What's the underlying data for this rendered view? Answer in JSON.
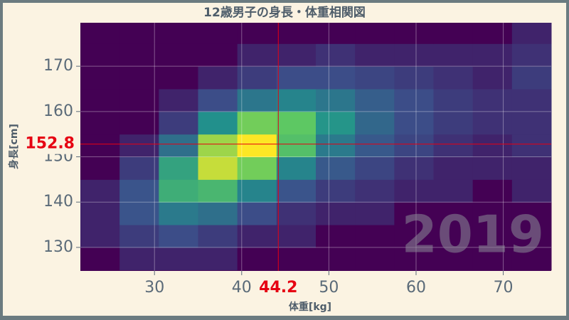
{
  "chart_data": {
    "type": "heatmap",
    "title": "12歳男子の身長・体重相関図",
    "xlabel": "体重[kg]",
    "ylabel": "身長[cm]",
    "x_bins": [
      21.5,
      26,
      30.5,
      35,
      39.5,
      44,
      48.5,
      53,
      57.5,
      62,
      66.5,
      71,
      75.5
    ],
    "y_bins": [
      125,
      130,
      135,
      140,
      145,
      150,
      155,
      160,
      165,
      170,
      175,
      180
    ],
    "counts": [
      [
        0,
        1,
        1,
        1,
        0,
        0,
        0,
        0,
        0,
        0,
        0,
        0
      ],
      [
        1,
        3,
        5,
        3,
        1,
        1,
        0,
        0,
        0,
        0,
        0,
        0
      ],
      [
        1,
        6,
        15,
        12,
        5,
        2,
        1,
        1,
        0,
        0,
        0,
        0
      ],
      [
        1,
        6,
        35,
        40,
        18,
        6,
        3,
        2,
        1,
        1,
        0,
        1
      ],
      [
        0,
        3,
        30,
        75,
        55,
        18,
        7,
        4,
        2,
        1,
        1,
        1
      ],
      [
        0,
        1,
        12,
        65,
        90,
        45,
        15,
        7,
        4,
        2,
        1,
        2
      ],
      [
        0,
        0,
        3,
        22,
        55,
        50,
        24,
        10,
        5,
        3,
        2,
        2
      ],
      [
        0,
        0,
        1,
        5,
        14,
        18,
        14,
        8,
        5,
        3,
        2,
        2
      ],
      [
        0,
        0,
        0,
        1,
        3,
        5,
        5,
        4,
        3,
        2,
        1,
        3
      ],
      [
        0,
        0,
        0,
        0,
        1,
        1,
        2,
        1,
        1,
        1,
        1,
        2
      ],
      [
        0,
        0,
        0,
        0,
        0,
        0,
        0,
        0,
        0,
        0,
        0,
        1
      ]
    ],
    "colormap": [
      "#440154",
      "#3b528b",
      "#21918c",
      "#5ec962",
      "#fde725"
    ],
    "xlim": [
      21.5,
      75.5
    ],
    "ylim": [
      124.8,
      179.6
    ],
    "xticks": [
      30,
      40,
      50,
      60,
      70
    ],
    "yticks": [
      130,
      140,
      150,
      160,
      170
    ],
    "grid": true,
    "reference": {
      "x": 44.2,
      "y": 152.8,
      "color": "#e60012"
    },
    "watermark": "2019"
  }
}
